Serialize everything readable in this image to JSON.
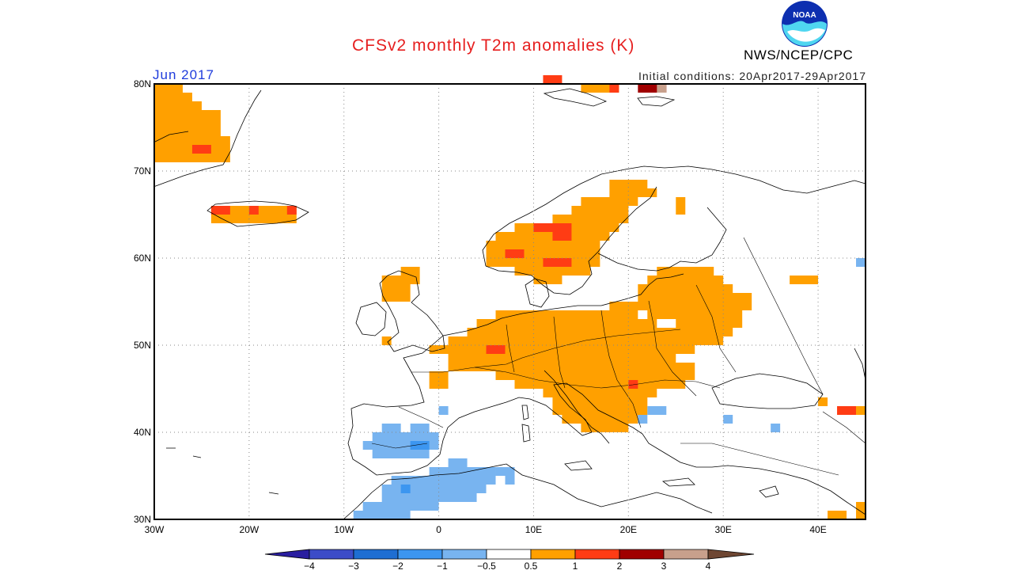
{
  "header": {
    "title": "CFSv2 monthly T2m anomalies (K)",
    "month": "Jun 2017",
    "initial_conditions": "Initial conditions: 20Apr2017-29Apr2017",
    "agency": "NWS/NCEP/CPC",
    "logo_text": "NOAA"
  },
  "axes": {
    "lat_labels": [
      "80N",
      "70N",
      "60N",
      "50N",
      "40N",
      "30N"
    ],
    "lon_labels": [
      "30W",
      "20W",
      "10W",
      "0",
      "10E",
      "20E",
      "30E",
      "40E"
    ],
    "lon_range": [
      -30,
      45
    ],
    "lat_range": [
      30,
      80
    ]
  },
  "colorbar": {
    "ticks": [
      "−4",
      "−3",
      "−2",
      "−1",
      "−0.5",
      "0.5",
      "1",
      "2",
      "3",
      "4"
    ],
    "colors": [
      "#2a1ea0",
      "#3c4cc8",
      "#1e6ed2",
      "#3c96f0",
      "#78b4f0",
      "#ffffff",
      "#ffa000",
      "#ff3c14",
      "#a00000",
      "#c8a08c",
      "#6e4632"
    ]
  },
  "anomaly_cells": [
    {
      "lon": -30,
      "lat": 79,
      "w": 3,
      "h": 1,
      "v": 0.7
    },
    {
      "lon": -30,
      "lat": 78,
      "w": 4,
      "h": 1,
      "v": 0.7
    },
    {
      "lon": -30,
      "lat": 77,
      "w": 5,
      "h": 1,
      "v": 0.7
    },
    {
      "lon": -30,
      "lat": 76,
      "w": 7,
      "h": 1,
      "v": 0.7
    },
    {
      "lon": -30,
      "lat": 75,
      "w": 7,
      "h": 1,
      "v": 0.7
    },
    {
      "lon": -30,
      "lat": 74,
      "w": 7,
      "h": 1,
      "v": 0.7
    },
    {
      "lon": -30,
      "lat": 73,
      "w": 8,
      "h": 1,
      "v": 0.7
    },
    {
      "lon": -30,
      "lat": 72,
      "w": 8,
      "h": 1,
      "v": 0.7
    },
    {
      "lon": -30,
      "lat": 71,
      "w": 8,
      "h": 1,
      "v": 0.7
    },
    {
      "lon": -26,
      "lat": 72,
      "w": 2,
      "h": 1,
      "v": 1.5
    },
    {
      "lon": -24,
      "lat": 65,
      "w": 9,
      "h": 1,
      "v": 0.7
    },
    {
      "lon": -24,
      "lat": 64,
      "w": 9,
      "h": 1,
      "v": 0.7
    },
    {
      "lon": -24,
      "lat": 65,
      "w": 2,
      "h": 1,
      "v": 1.5
    },
    {
      "lon": -20,
      "lat": 65,
      "w": 1,
      "h": 1,
      "v": 1.5
    },
    {
      "lon": -16,
      "lat": 65,
      "w": 1,
      "h": 1,
      "v": 1.5
    },
    {
      "lon": -4,
      "lat": 58,
      "w": 2,
      "h": 1,
      "v": 0.7
    },
    {
      "lon": -6,
      "lat": 57,
      "w": 4,
      "h": 1,
      "v": 0.7
    },
    {
      "lon": -6,
      "lat": 56,
      "w": 3,
      "h": 1,
      "v": 0.7
    },
    {
      "lon": -6,
      "lat": 55,
      "w": 3,
      "h": 1,
      "v": 0.7
    },
    {
      "lon": -6,
      "lat": 50,
      "w": 1,
      "h": 1,
      "v": 0.7
    },
    {
      "lon": 18,
      "lat": 68,
      "w": 4,
      "h": 1,
      "v": 0.7
    },
    {
      "lon": 18,
      "lat": 67,
      "w": 5,
      "h": 1,
      "v": 0.7
    },
    {
      "lon": 15,
      "lat": 66,
      "w": 6,
      "h": 1,
      "v": 0.7
    },
    {
      "lon": 14,
      "lat": 65,
      "w": 6,
      "h": 1,
      "v": 0.7
    },
    {
      "lon": 12,
      "lat": 64,
      "w": 8,
      "h": 1,
      "v": 0.7
    },
    {
      "lon": 8,
      "lat": 63,
      "w": 11,
      "h": 1,
      "v": 0.7
    },
    {
      "lon": 6,
      "lat": 62,
      "w": 12,
      "h": 1,
      "v": 0.7
    },
    {
      "lon": 5,
      "lat": 61,
      "w": 12,
      "h": 1,
      "v": 0.7
    },
    {
      "lon": 5,
      "lat": 60,
      "w": 12,
      "h": 1,
      "v": 0.7
    },
    {
      "lon": 5,
      "lat": 59,
      "w": 12,
      "h": 1,
      "v": 0.7
    },
    {
      "lon": 8,
      "lat": 58,
      "w": 8,
      "h": 1,
      "v": 0.7
    },
    {
      "lon": 10,
      "lat": 57,
      "w": 3,
      "h": 1,
      "v": 0.7
    },
    {
      "lon": 10,
      "lat": 63,
      "w": 4,
      "h": 1,
      "v": 1.5
    },
    {
      "lon": 12,
      "lat": 62,
      "w": 2,
      "h": 1,
      "v": 1.5
    },
    {
      "lon": 7,
      "lat": 60,
      "w": 2,
      "h": 1,
      "v": 1.5
    },
    {
      "lon": 11,
      "lat": 59,
      "w": 3,
      "h": 1,
      "v": 1.5
    },
    {
      "lon": 25,
      "lat": 65,
      "w": 1,
      "h": 2,
      "v": 0.7
    },
    {
      "lon": 23,
      "lat": 58,
      "w": 6,
      "h": 1,
      "v": 0.7
    },
    {
      "lon": 22,
      "lat": 57,
      "w": 8,
      "h": 1,
      "v": 0.7
    },
    {
      "lon": 21,
      "lat": 56,
      "w": 10,
      "h": 1,
      "v": 0.7
    },
    {
      "lon": 21,
      "lat": 55,
      "w": 12,
      "h": 1,
      "v": 0.7
    },
    {
      "lon": 18,
      "lat": 54,
      "w": 15,
      "h": 1,
      "v": 0.7
    },
    {
      "lon": 6,
      "lat": 53,
      "w": 26,
      "h": 1,
      "v": 0.7
    },
    {
      "lon": 4,
      "lat": 52,
      "w": 28,
      "h": 1,
      "v": 0.7
    },
    {
      "lon": 3,
      "lat": 51,
      "w": 28,
      "h": 1,
      "v": 0.7
    },
    {
      "lon": 1,
      "lat": 50,
      "w": 29,
      "h": 1,
      "v": 0.7
    },
    {
      "lon": -1,
      "lat": 49,
      "w": 28,
      "h": 1,
      "v": 0.7
    },
    {
      "lon": 1,
      "lat": 48,
      "w": 24,
      "h": 1,
      "v": 0.7
    },
    {
      "lon": 1,
      "lat": 47,
      "w": 26,
      "h": 1,
      "v": 0.7
    },
    {
      "lon": 6,
      "lat": 46,
      "w": 21,
      "h": 1,
      "v": 0.7
    },
    {
      "lon": 8,
      "lat": 45,
      "w": 18,
      "h": 1,
      "v": 0.7
    },
    {
      "lon": -1,
      "lat": 45,
      "w": 2,
      "h": 2,
      "v": 0.7
    },
    {
      "lon": 11,
      "lat": 44,
      "w": 12,
      "h": 1,
      "v": 0.7
    },
    {
      "lon": 12,
      "lat": 43,
      "w": 10,
      "h": 1,
      "v": 0.7
    },
    {
      "lon": 12,
      "lat": 42,
      "w": 10,
      "h": 1,
      "v": 0.7
    },
    {
      "lon": 13,
      "lat": 41,
      "w": 8,
      "h": 1,
      "v": 0.7
    },
    {
      "lon": 15,
      "lat": 40,
      "w": 5,
      "h": 1,
      "v": 0.7
    },
    {
      "lon": 5,
      "lat": 49,
      "w": 2,
      "h": 1,
      "v": 1.5
    },
    {
      "lon": 20,
      "lat": 45,
      "w": 1,
      "h": 1,
      "v": 1.5
    },
    {
      "lon": 23,
      "lat": 52,
      "w": 2,
      "h": 1,
      "v": 0
    },
    {
      "lon": 21,
      "lat": 53,
      "w": 1,
      "h": 1,
      "v": 0
    },
    {
      "lon": 37,
      "lat": 57,
      "w": 3,
      "h": 1,
      "v": 0.7
    },
    {
      "lon": 40,
      "lat": 43,
      "w": 1,
      "h": 1,
      "v": 0.7
    },
    {
      "lon": 42,
      "lat": 42,
      "w": 2,
      "h": 1,
      "v": 1.5
    },
    {
      "lon": 44,
      "lat": 42,
      "w": 1,
      "h": 1,
      "v": 0.7
    },
    {
      "lon": 41,
      "lat": 30,
      "w": 2,
      "h": 1,
      "v": 0.7
    },
    {
      "lon": 44,
      "lat": 30,
      "w": 1,
      "h": 2,
      "v": 0.7
    },
    {
      "lon": 11,
      "lat": 80,
      "w": 2,
      "h": 1,
      "v": 1.5
    },
    {
      "lon": 15,
      "lat": 79,
      "w": 4,
      "h": 1,
      "v": 0.7
    },
    {
      "lon": 18,
      "lat": 79,
      "w": 1,
      "h": 1,
      "v": 1.5
    },
    {
      "lon": 21,
      "lat": 79,
      "w": 3,
      "h": 1,
      "v": 2.5
    },
    {
      "lon": 23,
      "lat": 79,
      "w": 1,
      "h": 1,
      "v": 3.5
    },
    {
      "lon": 22,
      "lat": 42,
      "w": 2,
      "h": 1,
      "v": -0.7
    },
    {
      "lon": 21,
      "lat": 41,
      "w": 1,
      "h": 1,
      "v": -0.7
    },
    {
      "lon": 30,
      "lat": 41,
      "w": 1,
      "h": 1,
      "v": -0.7
    },
    {
      "lon": 35,
      "lat": 40,
      "w": 1,
      "h": 1,
      "v": -0.7
    },
    {
      "lon": 44,
      "lat": 59,
      "w": 1,
      "h": 1,
      "v": -0.7
    },
    {
      "lon": 0,
      "lat": 42,
      "w": 1,
      "h": 1,
      "v": -0.7
    },
    {
      "lon": -6,
      "lat": 40,
      "w": 2,
      "h": 1,
      "v": -0.7
    },
    {
      "lon": -3,
      "lat": 40,
      "w": 2,
      "h": 1,
      "v": -0.7
    },
    {
      "lon": -7,
      "lat": 39,
      "w": 7,
      "h": 1,
      "v": -0.7
    },
    {
      "lon": -8,
      "lat": 38,
      "w": 8,
      "h": 1,
      "v": -0.7
    },
    {
      "lon": -7,
      "lat": 37,
      "w": 6,
      "h": 1,
      "v": -0.7
    },
    {
      "lon": -3,
      "lat": 38,
      "w": 2,
      "h": 1,
      "v": -1.5
    },
    {
      "lon": 1,
      "lat": 36,
      "w": 2,
      "h": 1,
      "v": -0.7
    },
    {
      "lon": -1,
      "lat": 35,
      "w": 7,
      "h": 1,
      "v": -0.7
    },
    {
      "lon": 6,
      "lat": 35,
      "w": 2,
      "h": 1,
      "v": -0.7
    },
    {
      "lon": 7,
      "lat": 34,
      "w": 1,
      "h": 1,
      "v": -0.7
    },
    {
      "lon": -5,
      "lat": 34,
      "w": 11,
      "h": 1,
      "v": -0.7
    },
    {
      "lon": -6,
      "lat": 33,
      "w": 11,
      "h": 1,
      "v": -0.7
    },
    {
      "lon": -6,
      "lat": 32,
      "w": 10,
      "h": 1,
      "v": -0.7
    },
    {
      "lon": -8,
      "lat": 31,
      "w": 8,
      "h": 1,
      "v": -0.7
    },
    {
      "lon": -9,
      "lat": 30,
      "w": 6,
      "h": 1,
      "v": -0.7
    },
    {
      "lon": -4,
      "lat": 33,
      "w": 1,
      "h": 1,
      "v": -1.5
    }
  ]
}
